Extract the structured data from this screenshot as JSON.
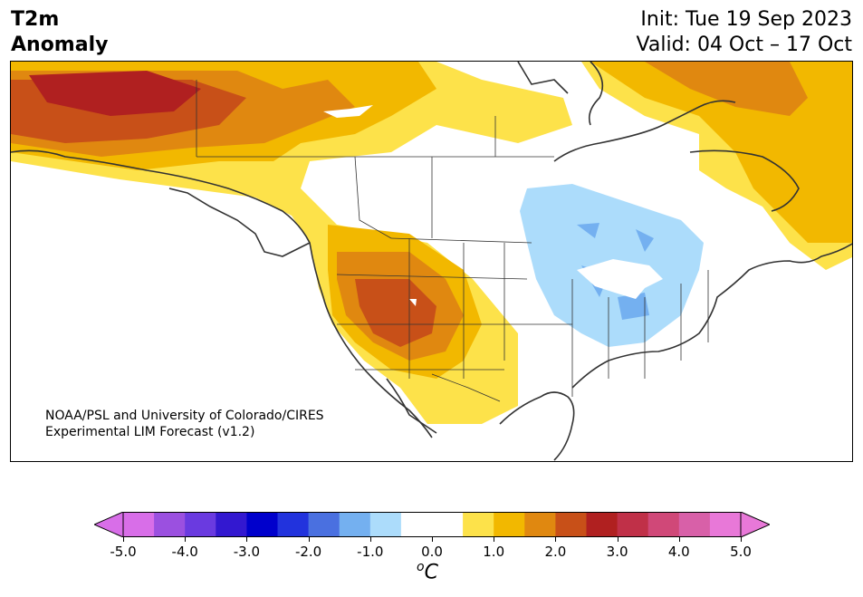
{
  "header": {
    "title_line1": "T2m",
    "title_line2": "Anomaly",
    "init": "Init: Tue 19 Sep 2023",
    "valid": "Valid: 04 Oct – 17 Oct"
  },
  "map": {
    "credit_line1": "NOAA/PSL and University of Colorado/CIRES",
    "credit_line2": "Experimental LIM Forecast (v1.2)",
    "region": "North America",
    "variable": "2-meter temperature anomaly"
  },
  "colorbar": {
    "units_base": "C",
    "units_sup": "o",
    "tick_labels": [
      "-5.0",
      "-4.0",
      "-3.0",
      "-2.0",
      "-1.0",
      "0.0",
      "1.0",
      "2.0",
      "3.0",
      "4.0",
      "5.0"
    ],
    "min": -5.0,
    "max": 5.0,
    "colors": [
      "#d86ee8",
      "#9b50e0",
      "#6a3ae0",
      "#3318d0",
      "#0000cc",
      "#2233dd",
      "#4a70e0",
      "#74b0f0",
      "#acdcfb",
      "#ffffff",
      "#ffffff",
      "#fde24a",
      "#f2b800",
      "#e08810",
      "#c85018",
      "#b02020",
      "#c03048",
      "#d04878",
      "#d860a8",
      "#e878d8"
    ],
    "under_color": "#d86ee8",
    "over_color": "#e878d8"
  }
}
